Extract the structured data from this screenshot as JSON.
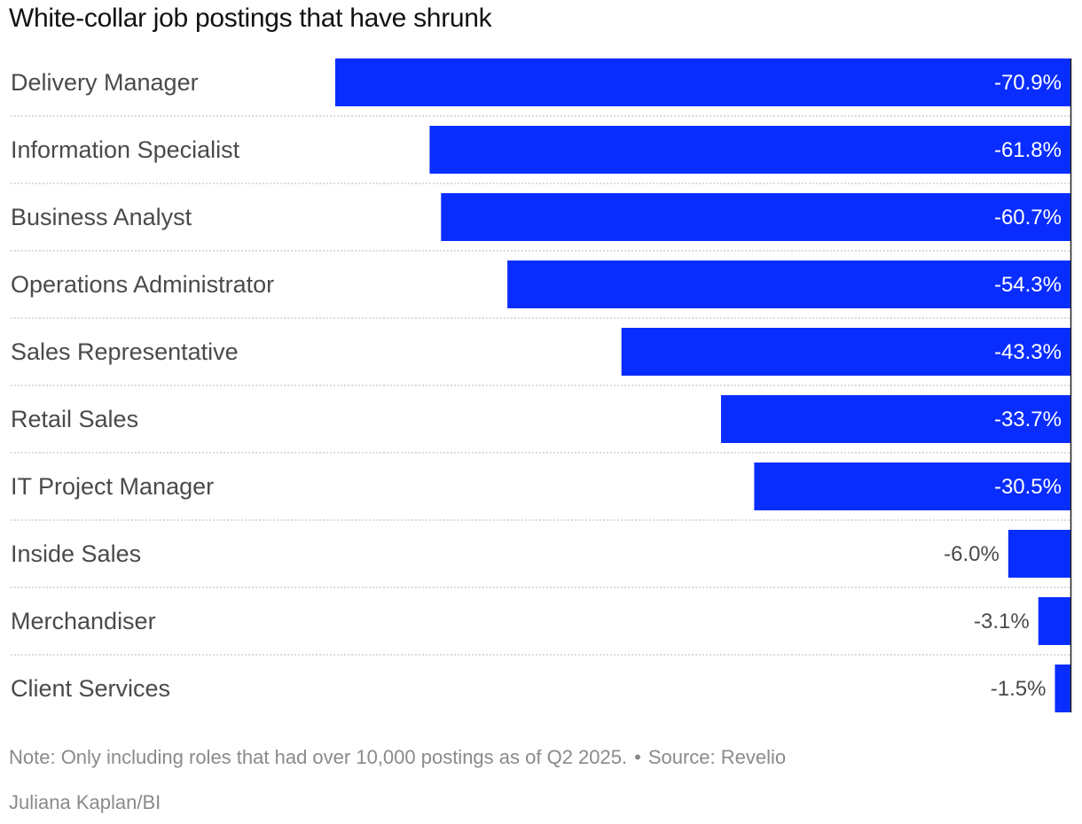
{
  "title": "White-collar job postings that have shrunk",
  "note": "Note: Only including roles that had over 10,000 postings as of Q2 2025.",
  "separator": "•",
  "source": "Source: Revelio",
  "credit": "Juliana Kaplan/BI",
  "colors": {
    "bar": "#0a2dff",
    "label": "#4a4a4a",
    "value_inside": "#ffffff",
    "value_outside": "#4a4a4a",
    "gridline": "#c8c8c8"
  },
  "chart_data": {
    "type": "bar",
    "orientation": "horizontal",
    "categories": [
      "Delivery Manager",
      "Information Specialist",
      "Business Analyst",
      "Operations Administrator",
      "Sales Representative",
      "Retail Sales",
      "IT Project Manager",
      "Inside Sales",
      "Merchandiser",
      "Client Services"
    ],
    "values": [
      -70.9,
      -61.8,
      -60.7,
      -54.3,
      -43.3,
      -33.7,
      -30.5,
      -6.0,
      -3.1,
      -1.5
    ],
    "value_labels": [
      "-70.9%",
      "-61.8%",
      "-60.7%",
      "-54.3%",
      "-43.3%",
      "-33.7%",
      "-30.5%",
      "-6.0%",
      "-3.1%",
      "-1.5%"
    ],
    "xlim": [
      -70.9,
      0
    ],
    "grid": false,
    "legend": "none"
  }
}
